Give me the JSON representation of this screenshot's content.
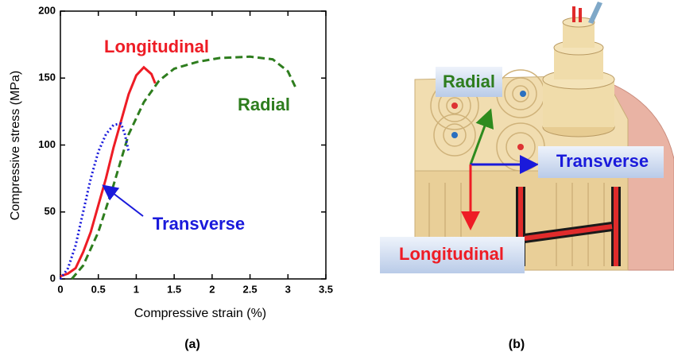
{
  "chart_data": {
    "type": "line",
    "caption": "(a)",
    "x_label": "Compressive strain (%)",
    "y_label": "Compressive stress (MPa)",
    "xlim": [
      0,
      3.5
    ],
    "xticks": [
      0,
      0.5,
      1,
      1.5,
      2,
      2.5,
      3,
      3.5
    ],
    "ylim": [
      0,
      200
    ],
    "yticks": [
      0,
      50,
      100,
      150,
      200
    ],
    "series": [
      {
        "name": "Longitudinal",
        "color": "#ee1c25",
        "linestyle": "solid",
        "x": [
          0,
          0.1,
          0.2,
          0.3,
          0.4,
          0.5,
          0.6,
          0.7,
          0.8,
          0.9,
          1.0,
          1.1,
          1.2,
          1.25
        ],
        "values": [
          2,
          4,
          8,
          20,
          35,
          55,
          75,
          98,
          118,
          138,
          152,
          158,
          153,
          146
        ]
      },
      {
        "name": "Radial",
        "color": "#2e7d1e",
        "linestyle": "dashed",
        "x": [
          0.15,
          0.3,
          0.5,
          0.7,
          0.9,
          1.1,
          1.3,
          1.5,
          1.8,
          2.1,
          2.5,
          2.8,
          3.0,
          3.1
        ],
        "values": [
          0,
          10,
          35,
          70,
          108,
          132,
          148,
          157,
          162,
          165,
          166,
          164,
          155,
          143
        ]
      },
      {
        "name": "Transverse",
        "color": "#1a1adb",
        "linestyle": "dotted",
        "x": [
          0,
          0.1,
          0.2,
          0.3,
          0.4,
          0.5,
          0.6,
          0.7,
          0.8,
          0.85,
          0.9
        ],
        "values": [
          0,
          8,
          25,
          50,
          75,
          95,
          108,
          115,
          116,
          108,
          95
        ]
      }
    ]
  },
  "diagram": {
    "caption": "(b)",
    "labels": [
      "Radial",
      "Transverse",
      "Longitudinal"
    ]
  }
}
